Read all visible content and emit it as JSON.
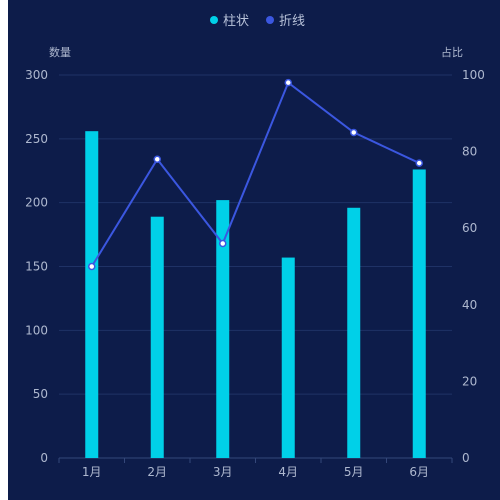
{
  "colors": {
    "background": "#0d1c4a",
    "bar": "#00d0e8",
    "line": "#3b57e0",
    "point_fill": "#ffffff",
    "text": "#aeb8cf",
    "grid": "#1f3266"
  },
  "chart_data": {
    "type": "bar",
    "categories": [
      "1月",
      "2月",
      "3月",
      "4月",
      "5月",
      "6月"
    ],
    "series": [
      {
        "name": "柱状",
        "type": "bar",
        "axis": "left",
        "values": [
          256,
          189,
          202,
          157,
          196,
          226
        ]
      },
      {
        "name": "折线",
        "type": "line",
        "axis": "right",
        "values": [
          50,
          78,
          56,
          98,
          85,
          77
        ]
      }
    ],
    "y_left": {
      "name": "数量",
      "ylim": [
        0,
        300
      ],
      "ticks": [
        0,
        50,
        100,
        150,
        200,
        250,
        300
      ]
    },
    "y_right": {
      "name": "占比",
      "ylim": [
        0,
        100
      ],
      "ticks": [
        0,
        20,
        40,
        60,
        80,
        100
      ]
    },
    "grid": true,
    "legend_position": "top-center"
  }
}
